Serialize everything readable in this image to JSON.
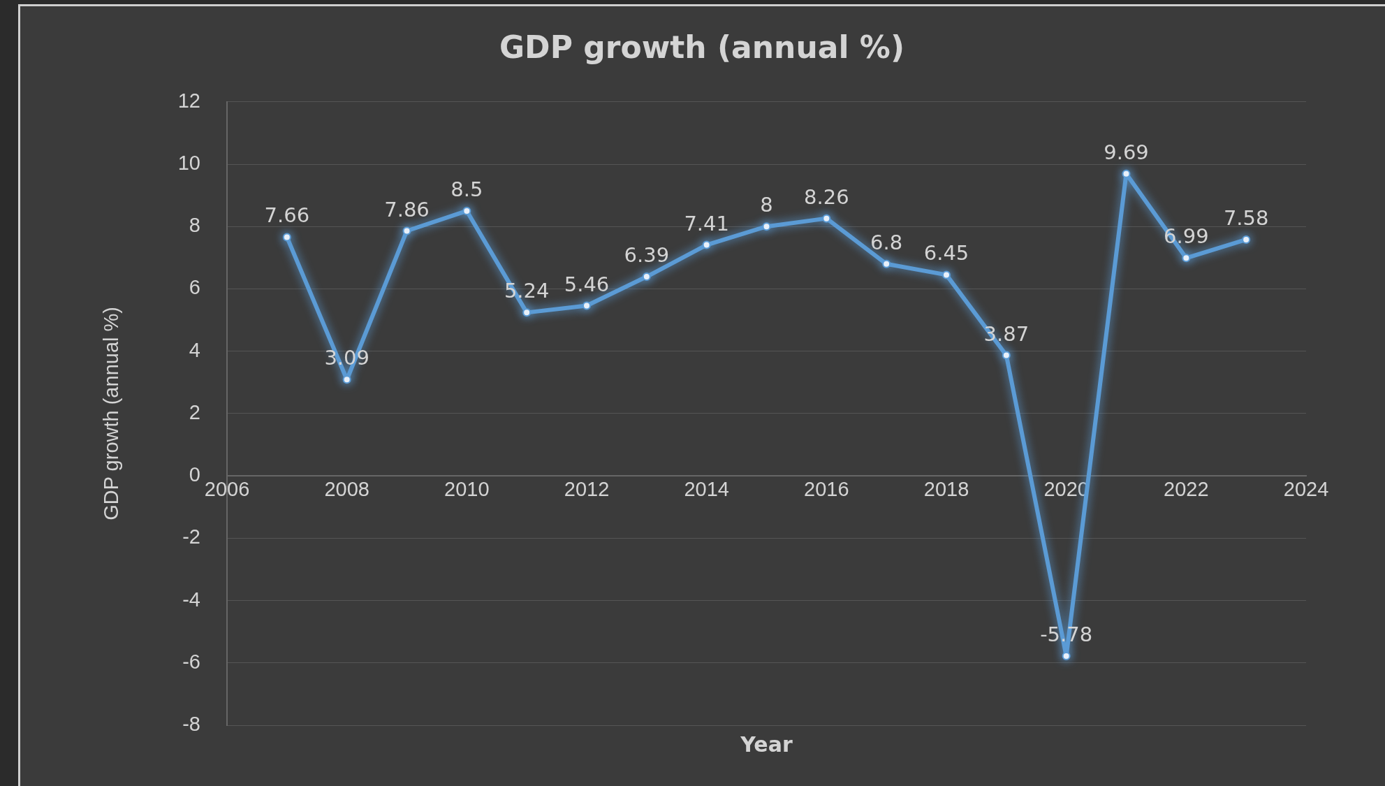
{
  "chart_data": {
    "type": "line",
    "title": "GDP growth (annual %)",
    "xlabel": "Year",
    "ylabel": "GDP growth (annual %)",
    "x": [
      2007,
      2008,
      2009,
      2010,
      2011,
      2012,
      2013,
      2014,
      2015,
      2016,
      2017,
      2018,
      2019,
      2020,
      2021,
      2022,
      2023
    ],
    "series": [
      {
        "color": "#5b9bd5",
        "values": [
          7.66,
          3.09,
          7.86,
          8.5,
          5.24,
          5.46,
          6.39,
          7.41,
          8,
          8.26,
          6.8,
          6.45,
          3.87,
          -5.78,
          9.69,
          6.99,
          7.58
        ]
      }
    ],
    "xlim": [
      2006,
      2024
    ],
    "xticks": [
      2006,
      2008,
      2010,
      2012,
      2014,
      2016,
      2018,
      2020,
      2022,
      2024
    ],
    "ylim": [
      -8,
      12
    ],
    "yticks": [
      -8,
      -6,
      -4,
      -2,
      0,
      2,
      4,
      6,
      8,
      10,
      12
    ],
    "grid": "y",
    "marker": "circle",
    "line_style": "solid",
    "data_labels": true
  }
}
